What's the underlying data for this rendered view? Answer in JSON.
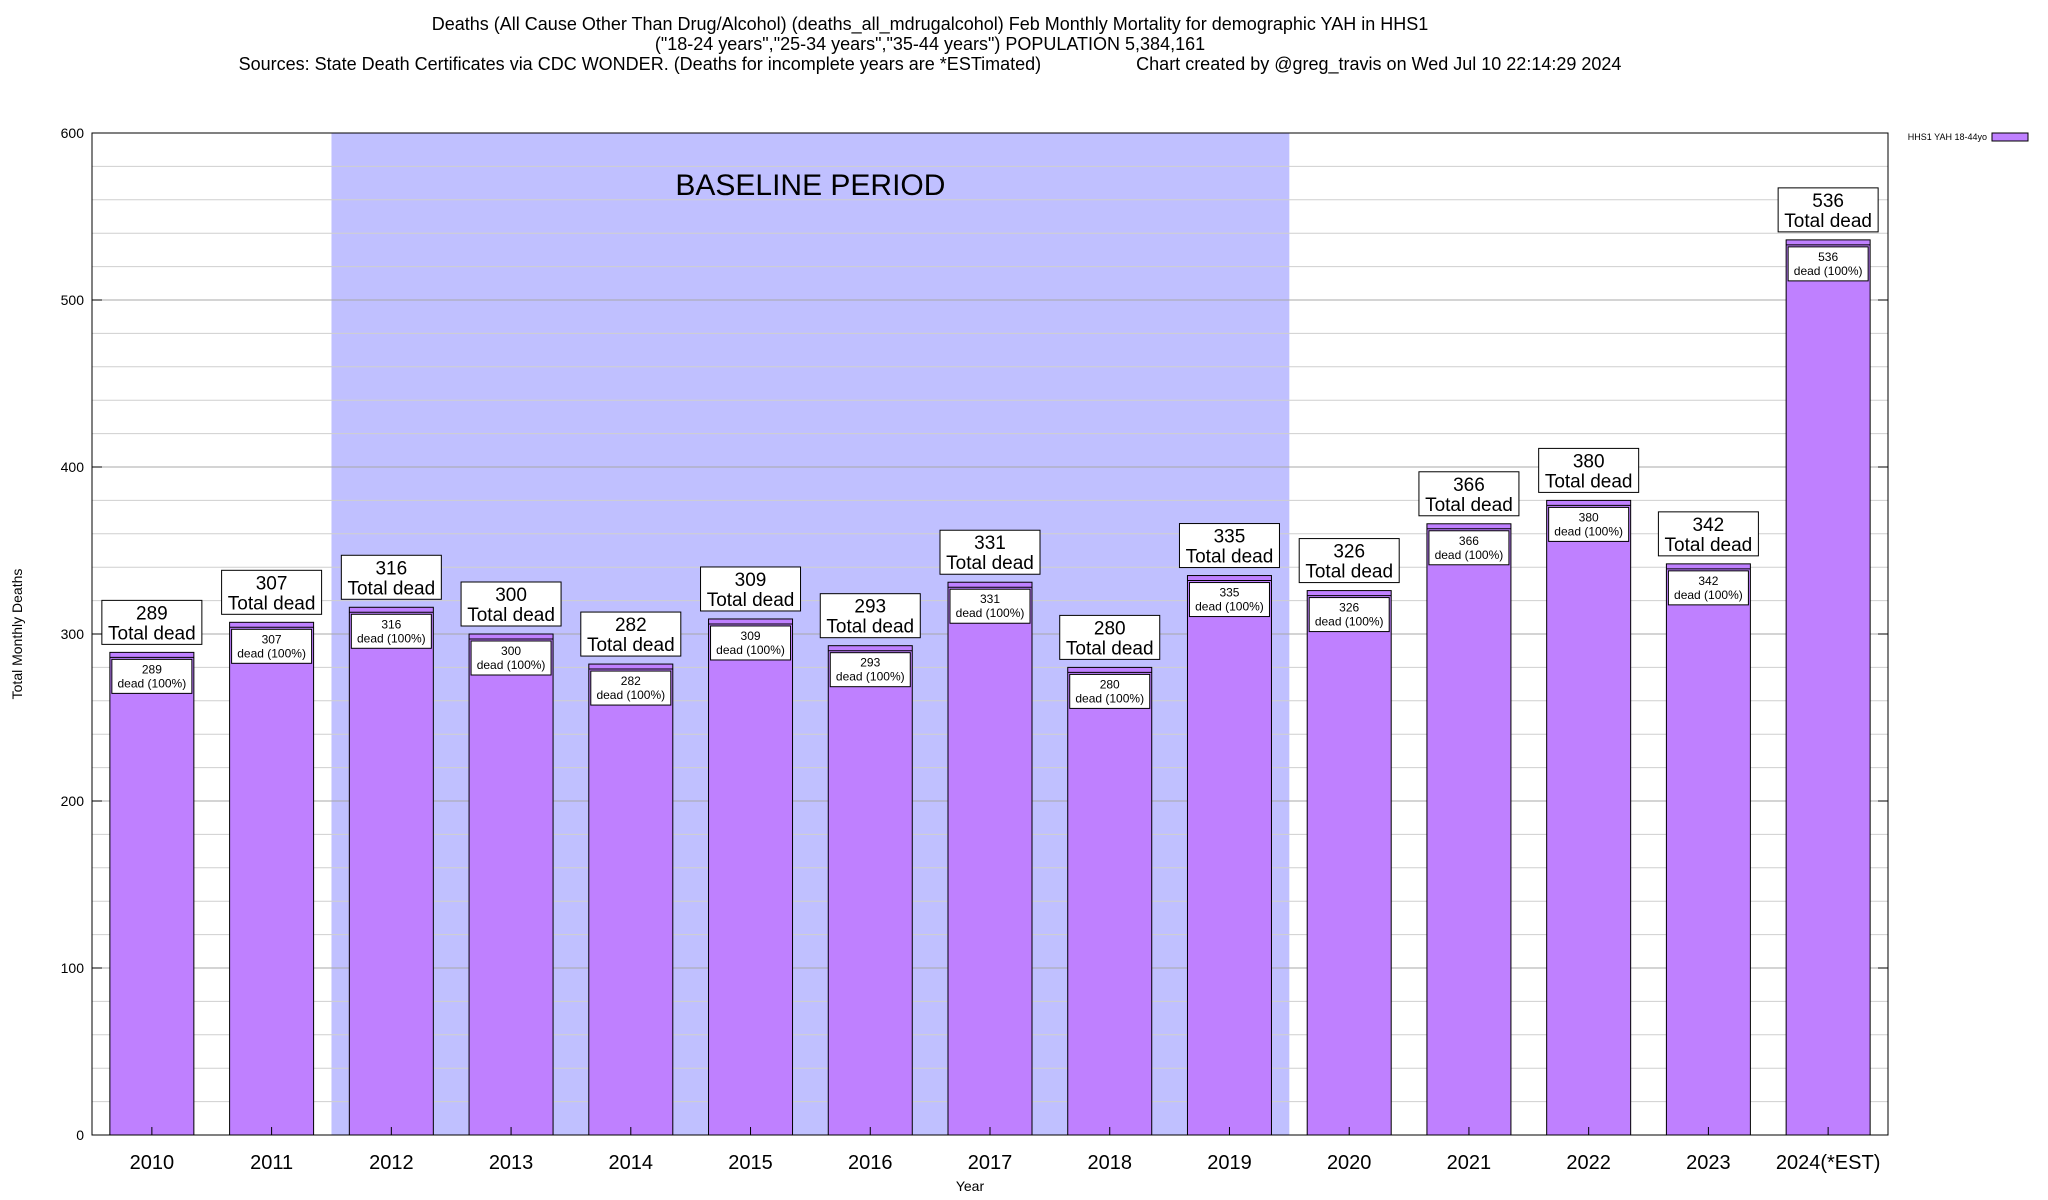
{
  "header": {
    "line1": "Deaths (All Cause Other Than Drug/Alcohol) (deaths_all_mdrugalcohol) Feb Monthly Mortality for demographic YAH in HHS1",
    "line2": "(\"18-24 years\",\"25-34 years\",\"35-44 years\") POPULATION 5,384,161",
    "line3_left": "Sources: State Death Certificates via CDC WONDER. (Deaths for incomplete years are *ESTimated)",
    "line3_right": "Chart created by @greg_travis on Wed Jul 10 22:14:29 2024"
  },
  "chart_data": {
    "type": "bar",
    "xlabel": "Year",
    "ylabel": "Total Monthly Deaths",
    "ylim": [
      0,
      600
    ],
    "yticks": [
      0,
      100,
      200,
      300,
      400,
      500,
      600
    ],
    "grid": true,
    "legend_position": "top-right",
    "categories": [
      "2010",
      "2011",
      "2012",
      "2013",
      "2014",
      "2015",
      "2016",
      "2017",
      "2018",
      "2019",
      "2020",
      "2021",
      "2022",
      "2023",
      "2024(*EST)"
    ],
    "series": [
      {
        "name": "HHS1 YAH 18-44yo",
        "values": [
          289,
          307,
          316,
          300,
          282,
          309,
          293,
          331,
          280,
          335,
          326,
          366,
          380,
          342,
          536
        ],
        "color": "#bf80ff"
      }
    ],
    "total_label_suffix": "Total dead",
    "inner_label_suffix": "dead (100%)",
    "baseline": {
      "label": "BASELINE PERIOD",
      "start": "2012",
      "end": "2019",
      "color": "#c0c0ff"
    }
  }
}
